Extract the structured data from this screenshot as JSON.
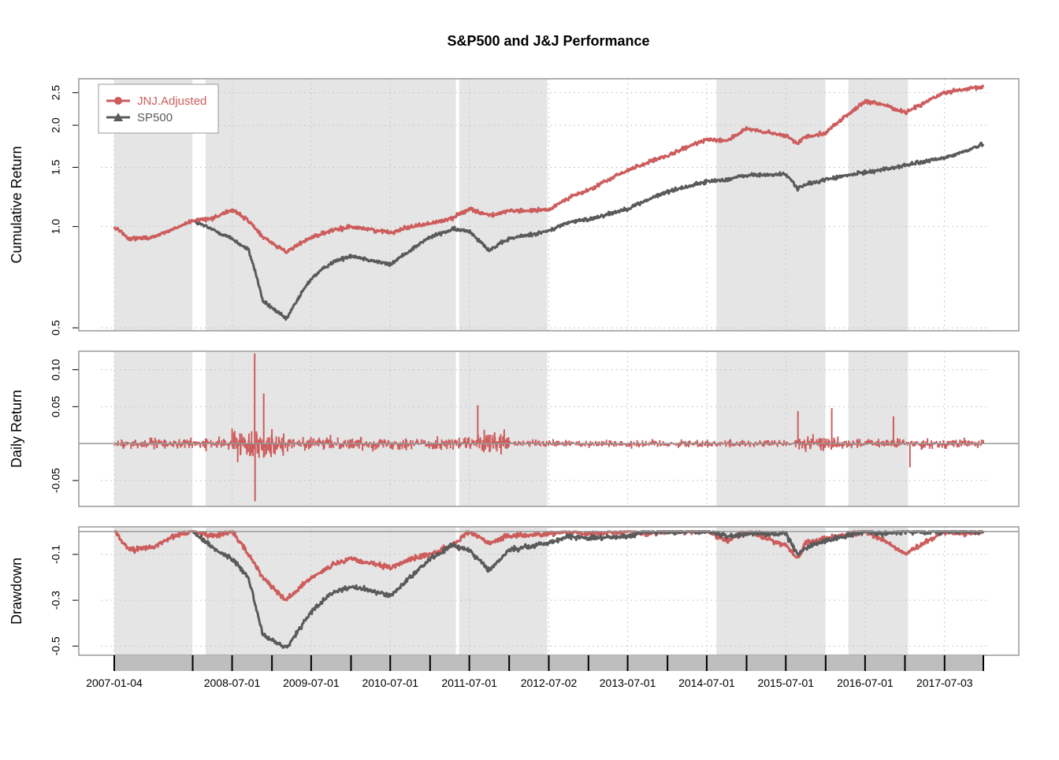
{
  "chart_data": {
    "type": "line",
    "title": "S&P500 and J&J Performance",
    "x_tick_labels": [
      "2007-01-04",
      "2008-07-01",
      "2009-07-01",
      "2010-07-01",
      "2011-07-01",
      "2012-07-02",
      "2013-07-01",
      "2014-07-01",
      "2015-07-01",
      "2016-07-01",
      "2017-07-03"
    ],
    "x_range": [
      "2007-01-04",
      "2017-12-29"
    ],
    "grid": true,
    "legend_position": "top-left",
    "shaded_periods": [
      [
        "2007-01-04",
        "2007-12-31"
      ],
      [
        "2008-03-01",
        "2011-04-30"
      ],
      [
        "2011-05-15",
        "2012-06-25"
      ],
      [
        "2014-08-15",
        "2015-12-31"
      ],
      [
        "2016-04-15",
        "2017-01-15"
      ]
    ],
    "colors": {
      "JNJ.Adjusted": "#cd5c5c",
      "SP500": "#5a5a5a",
      "shade": "#e5e5e5",
      "axis_bar": "#bebebe",
      "frame": "#999999",
      "grid": "#c8c8c8"
    },
    "panels": [
      {
        "ylabel": "Cumulative Return",
        "y_scale": "log",
        "ylim": [
          0.49,
          2.75
        ],
        "y_ticks": [
          "0.5",
          "1.0",
          "1.5",
          "2.0",
          "2.5"
        ],
        "series": [
          {
            "name": "JNJ.Adjusted",
            "x": [
              "2007-01-04",
              "2007-03-15",
              "2007-07-01",
              "2007-10-01",
              "2008-01-01",
              "2008-04-01",
              "2008-07-01",
              "2008-09-15",
              "2008-11-20",
              "2009-03-09",
              "2009-07-01",
              "2009-10-01",
              "2010-01-01",
              "2010-07-01",
              "2010-10-01",
              "2011-01-01",
              "2011-04-15",
              "2011-07-01",
              "2011-10-01",
              "2012-01-01",
              "2012-07-02",
              "2012-10-01",
              "2013-01-01",
              "2013-07-01",
              "2013-10-01",
              "2014-01-01",
              "2014-07-01",
              "2014-10-01",
              "2015-01-01",
              "2015-07-01",
              "2015-08-25",
              "2015-10-01",
              "2016-01-01",
              "2016-07-01",
              "2016-10-01",
              "2017-01-01",
              "2017-07-03",
              "2017-10-01",
              "2017-12-29"
            ],
            "values": [
              1.0,
              0.92,
              0.93,
              0.98,
              1.04,
              1.06,
              1.12,
              1.04,
              0.93,
              0.84,
              0.93,
              0.97,
              1.0,
              0.96,
              1.0,
              1.02,
              1.06,
              1.13,
              1.08,
              1.11,
              1.12,
              1.22,
              1.28,
              1.47,
              1.55,
              1.62,
              1.82,
              1.8,
              1.95,
              1.86,
              1.77,
              1.85,
              1.9,
              2.35,
              2.3,
              2.18,
              2.5,
              2.55,
              2.6
            ]
          },
          {
            "name": "SP500",
            "x": [
              "2007-01-04",
              "2007-03-15",
              "2007-07-01",
              "2007-10-01",
              "2008-01-01",
              "2008-04-01",
              "2008-07-01",
              "2008-09-15",
              "2008-11-20",
              "2009-03-09",
              "2009-07-01",
              "2009-10-01",
              "2010-01-01",
              "2010-07-01",
              "2010-10-01",
              "2011-01-01",
              "2011-04-15",
              "2011-07-01",
              "2011-10-01",
              "2012-01-01",
              "2012-07-02",
              "2012-10-01",
              "2013-01-01",
              "2013-07-01",
              "2013-10-01",
              "2014-01-01",
              "2014-07-01",
              "2014-10-01",
              "2015-01-01",
              "2015-07-01",
              "2015-08-25",
              "2015-10-01",
              "2016-01-01",
              "2016-07-01",
              "2016-10-01",
              "2017-01-01",
              "2017-07-03",
              "2017-10-01",
              "2017-12-29"
            ],
            "values": [
              null,
              null,
              null,
              null,
              1.04,
              0.98,
              0.92,
              0.85,
              0.6,
              0.53,
              0.7,
              0.78,
              0.82,
              0.77,
              0.85,
              0.93,
              0.98,
              0.97,
              0.85,
              0.92,
              0.97,
              1.03,
              1.05,
              1.13,
              1.2,
              1.27,
              1.36,
              1.38,
              1.42,
              1.43,
              1.3,
              1.33,
              1.38,
              1.45,
              1.48,
              1.52,
              1.6,
              1.67,
              1.76
            ]
          }
        ]
      },
      {
        "ylabel": "Daily Return",
        "ylim": [
          -0.085,
          0.125
        ],
        "y_ticks": [
          "-0.05",
          "0.05",
          "0.10"
        ],
        "series": [
          {
            "name": "JNJ.Adjusted",
            "volatility": [
              {
                "from": "2007-01-04",
                "amplitude": 0.012
              },
              {
                "from": "2008-07-01",
                "amplitude": 0.03
              },
              {
                "from": "2009-03-01",
                "amplitude": 0.014
              },
              {
                "from": "2011-08-01",
                "amplitude": 0.025
              },
              {
                "from": "2012-01-01",
                "amplitude": 0.009
              },
              {
                "from": "2015-08-15",
                "amplitude": 0.016
              },
              {
                "from": "2016-03-01",
                "amplitude": 0.011
              }
            ],
            "extremes": [
              {
                "x": "2008-10-13",
                "value": 0.122
              },
              {
                "x": "2008-10-15",
                "value": -0.078
              },
              {
                "x": "2008-11-24",
                "value": 0.068
              },
              {
                "x": "2011-08-09",
                "value": 0.052
              },
              {
                "x": "2015-08-26",
                "value": 0.044
              },
              {
                "x": "2016-01-29",
                "value": 0.048
              },
              {
                "x": "2016-11-09",
                "value": 0.037
              },
              {
                "x": "2017-01-24",
                "value": -0.032
              }
            ]
          }
        ]
      },
      {
        "ylabel": "Drawdown",
        "ylim": [
          -0.54,
          0.02
        ],
        "y_ticks": [
          "-0.5",
          "-0.3",
          "-0.1"
        ],
        "series": [
          {
            "name": "JNJ.Adjusted",
            "x": [
              "2007-01-04",
              "2007-03-15",
              "2007-07-01",
              "2007-10-01",
              "2008-01-01",
              "2008-04-01",
              "2008-07-01",
              "2008-09-15",
              "2008-11-20",
              "2009-03-09",
              "2009-07-01",
              "2009-10-01",
              "2010-01-01",
              "2010-07-01",
              "2010-10-01",
              "2011-01-01",
              "2011-04-15",
              "2011-07-01",
              "2011-10-01",
              "2012-01-01",
              "2012-07-02",
              "2012-10-01",
              "2013-01-01",
              "2013-07-01",
              "2013-10-01",
              "2014-01-01",
              "2014-07-01",
              "2014-10-01",
              "2015-01-01",
              "2015-07-01",
              "2015-08-25",
              "2015-10-01",
              "2016-01-01",
              "2016-07-01",
              "2016-10-01",
              "2017-01-01",
              "2017-07-03",
              "2017-10-01",
              "2017-12-29"
            ],
            "values": [
              0.0,
              -0.08,
              -0.07,
              -0.02,
              0.0,
              -0.02,
              0.0,
              -0.1,
              -0.2,
              -0.3,
              -0.2,
              -0.15,
              -0.12,
              -0.16,
              -0.12,
              -0.1,
              -0.06,
              0.0,
              -0.05,
              -0.02,
              -0.01,
              0.0,
              -0.01,
              0.0,
              -0.01,
              0.0,
              0.0,
              -0.04,
              0.0,
              -0.06,
              -0.12,
              -0.05,
              -0.03,
              0.0,
              -0.04,
              -0.1,
              0.0,
              -0.01,
              0.0
            ]
          },
          {
            "name": "SP500",
            "x": [
              "2007-01-04",
              "2007-03-15",
              "2007-07-01",
              "2007-10-01",
              "2008-01-01",
              "2008-04-01",
              "2008-07-01",
              "2008-09-15",
              "2008-11-20",
              "2009-03-09",
              "2009-07-01",
              "2009-10-01",
              "2010-01-01",
              "2010-07-01",
              "2010-10-01",
              "2011-01-01",
              "2011-04-15",
              "2011-07-01",
              "2011-10-01",
              "2012-01-01",
              "2012-07-02",
              "2012-10-01",
              "2013-01-01",
              "2013-07-01",
              "2013-10-01",
              "2014-01-01",
              "2014-07-01",
              "2014-10-01",
              "2015-01-01",
              "2015-07-01",
              "2015-08-25",
              "2015-10-01",
              "2016-01-01",
              "2016-07-01",
              "2016-10-01",
              "2017-01-01",
              "2017-07-03",
              "2017-10-01",
              "2017-12-29"
            ],
            "values": [
              null,
              null,
              null,
              null,
              0.0,
              -0.07,
              -0.12,
              -0.2,
              -0.45,
              -0.51,
              -0.35,
              -0.27,
              -0.24,
              -0.28,
              -0.2,
              -0.12,
              -0.06,
              -0.08,
              -0.17,
              -0.08,
              -0.05,
              -0.02,
              -0.03,
              -0.02,
              0.0,
              0.0,
              0.0,
              -0.02,
              -0.01,
              -0.01,
              -0.1,
              -0.07,
              -0.04,
              0.0,
              -0.01,
              0.0,
              0.0,
              0.0,
              0.0
            ]
          }
        ]
      }
    ]
  }
}
